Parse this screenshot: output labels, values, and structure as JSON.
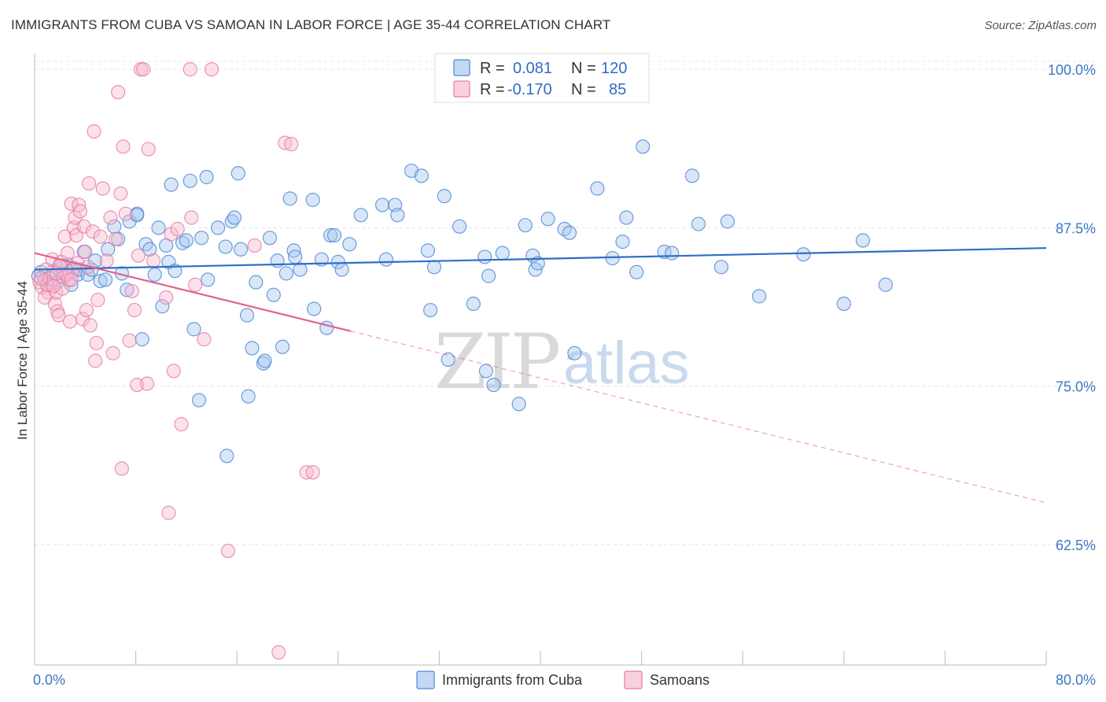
{
  "title": "IMMIGRANTS FROM CUBA VS SAMOAN IN LABOR FORCE | AGE 35-44 CORRELATION CHART",
  "source": "Source: ZipAtlas.com",
  "watermark": {
    "zip": "ZIP",
    "atlas": "atlas"
  },
  "colors": {
    "blue": "#4a86d4",
    "blue_fill": "#a9c8ef",
    "blue_line": "#2f6dc8",
    "pink": "#e87aa0",
    "pink_fill": "#f7bcd0",
    "pink_line": "#e0638d",
    "grid": "#e3e3e3",
    "axis_label": "#3b78c3"
  },
  "legend": {
    "rows": [
      {
        "r_label": "R =",
        "r_value": "0.081",
        "n_label": "N =",
        "n_value": "120"
      },
      {
        "r_label": "R =",
        "r_value": "-0.170",
        "n_label": "N =",
        "n_value": "85"
      }
    ]
  },
  "bottom_legend": [
    "Immigrants from Cuba",
    "Samoans"
  ],
  "chart_data": {
    "type": "scatter",
    "title": "IMMIGRANTS FROM CUBA VS SAMOAN IN LABOR FORCE | AGE 35-44 CORRELATION CHART",
    "xlabel": "",
    "ylabel": "In Labor Force | Age 35-44",
    "xlim": [
      0,
      80
    ],
    "ylim": [
      53,
      101
    ],
    "x_tick_labels": [
      "0.0%",
      "80.0%"
    ],
    "y_ticks": [
      62.5,
      75.0,
      87.5,
      100.0
    ],
    "y_tick_labels": [
      "62.5%",
      "75.0%",
      "87.5%",
      "100.0%"
    ],
    "grid": true,
    "legend_position": "top-center",
    "series": [
      {
        "name": "Immigrants from Cuba",
        "color": "#4a86d4",
        "trend": {
          "x": [
            0,
            80
          ],
          "y": [
            84.2,
            85.9
          ],
          "solid_until": 80
        },
        "points": [
          [
            0.3,
            83.7
          ],
          [
            0.5,
            84.0
          ],
          [
            0.8,
            83.4
          ],
          [
            1.0,
            83.0
          ],
          [
            1.2,
            83.6
          ],
          [
            1.5,
            84.1
          ],
          [
            1.8,
            83.2
          ],
          [
            2.0,
            84.5
          ],
          [
            2.3,
            83.9
          ],
          [
            2.6,
            84.6
          ],
          [
            2.9,
            83.0
          ],
          [
            3.1,
            84.3
          ],
          [
            3.4,
            83.8
          ],
          [
            3.6,
            84.2
          ],
          [
            3.9,
            85.6
          ],
          [
            4.2,
            83.8
          ],
          [
            4.5,
            84.2
          ],
          [
            4.8,
            84.9
          ],
          [
            5.2,
            83.3
          ],
          [
            5.6,
            83.4
          ],
          [
            5.8,
            85.8
          ],
          [
            6.3,
            87.6
          ],
          [
            6.6,
            86.6
          ],
          [
            6.9,
            83.9
          ],
          [
            7.3,
            82.6
          ],
          [
            7.5,
            88.0
          ],
          [
            8.1,
            88.6
          ],
          [
            8.1,
            88.5
          ],
          [
            8.5,
            78.7
          ],
          [
            8.8,
            86.2
          ],
          [
            9.1,
            85.8
          ],
          [
            9.5,
            83.8
          ],
          [
            9.8,
            87.5
          ],
          [
            10.1,
            81.3
          ],
          [
            10.4,
            86.1
          ],
          [
            10.6,
            84.8
          ],
          [
            10.8,
            90.9
          ],
          [
            11.1,
            84.1
          ],
          [
            11.7,
            86.3
          ],
          [
            12.0,
            86.5
          ],
          [
            12.3,
            91.2
          ],
          [
            12.6,
            79.5
          ],
          [
            13.0,
            73.9
          ],
          [
            13.2,
            86.7
          ],
          [
            13.6,
            91.5
          ],
          [
            13.7,
            83.4
          ],
          [
            14.5,
            87.5
          ],
          [
            15.1,
            86.0
          ],
          [
            15.2,
            69.5
          ],
          [
            15.6,
            88.0
          ],
          [
            15.8,
            88.3
          ],
          [
            16.1,
            91.8
          ],
          [
            16.3,
            85.8
          ],
          [
            16.8,
            80.6
          ],
          [
            16.9,
            74.2
          ],
          [
            17.2,
            78.0
          ],
          [
            17.5,
            83.2
          ],
          [
            18.1,
            76.8
          ],
          [
            18.2,
            77.0
          ],
          [
            18.6,
            86.7
          ],
          [
            18.9,
            82.2
          ],
          [
            19.2,
            84.9
          ],
          [
            19.6,
            78.1
          ],
          [
            19.9,
            83.9
          ],
          [
            20.2,
            89.8
          ],
          [
            20.5,
            85.7
          ],
          [
            20.6,
            85.2
          ],
          [
            21.0,
            84.2
          ],
          [
            22.0,
            89.7
          ],
          [
            22.1,
            81.1
          ],
          [
            22.7,
            85.0
          ],
          [
            23.1,
            79.6
          ],
          [
            23.4,
            86.9
          ],
          [
            23.7,
            86.9
          ],
          [
            24.0,
            84.8
          ],
          [
            24.3,
            84.2
          ],
          [
            24.9,
            86.2
          ],
          [
            25.8,
            88.5
          ],
          [
            27.5,
            89.3
          ],
          [
            27.8,
            85.0
          ],
          [
            28.5,
            89.3
          ],
          [
            28.7,
            88.5
          ],
          [
            29.8,
            92.0
          ],
          [
            30.6,
            91.6
          ],
          [
            31.1,
            85.7
          ],
          [
            31.3,
            81.0
          ],
          [
            31.6,
            84.4
          ],
          [
            32.4,
            90.0
          ],
          [
            32.7,
            77.1
          ],
          [
            33.6,
            87.6
          ],
          [
            34.7,
            81.5
          ],
          [
            35.6,
            85.2
          ],
          [
            35.7,
            76.2
          ],
          [
            35.9,
            83.7
          ],
          [
            36.3,
            75.1
          ],
          [
            37.0,
            85.5
          ],
          [
            38.3,
            73.6
          ],
          [
            38.8,
            87.7
          ],
          [
            39.4,
            85.3
          ],
          [
            39.6,
            84.2
          ],
          [
            39.8,
            84.7
          ],
          [
            40.6,
            88.2
          ],
          [
            41.9,
            87.4
          ],
          [
            42.3,
            87.1
          ],
          [
            42.7,
            77.6
          ],
          [
            44.5,
            90.6
          ],
          [
            45.7,
            85.1
          ],
          [
            46.5,
            86.4
          ],
          [
            46.8,
            88.3
          ],
          [
            47.6,
            84.0
          ],
          [
            48.1,
            93.9
          ],
          [
            49.8,
            85.6
          ],
          [
            50.4,
            85.5
          ],
          [
            52.0,
            91.6
          ],
          [
            52.5,
            87.8
          ],
          [
            54.3,
            84.4
          ],
          [
            54.8,
            88.0
          ],
          [
            57.3,
            82.1
          ],
          [
            60.8,
            85.4
          ],
          [
            64.0,
            81.5
          ],
          [
            65.5,
            86.5
          ],
          [
            67.3,
            83.0
          ]
        ]
      },
      {
        "name": "Samoans",
        "color": "#e87aa0",
        "trend": {
          "x": [
            0,
            80
          ],
          "y": [
            85.5,
            65.8
          ],
          "solid_until": 25
        },
        "points": [
          [
            0.4,
            83.2
          ],
          [
            0.6,
            82.8
          ],
          [
            0.9,
            84.2
          ],
          [
            1.1,
            82.4
          ],
          [
            1.3,
            83.0
          ],
          [
            1.4,
            85.0
          ],
          [
            1.6,
            81.5
          ],
          [
            1.7,
            82.4
          ],
          [
            1.8,
            80.9
          ],
          [
            1.9,
            80.6
          ],
          [
            2.1,
            84.8
          ],
          [
            2.2,
            82.7
          ],
          [
            2.3,
            83.6
          ],
          [
            2.4,
            86.8
          ],
          [
            2.6,
            85.5
          ],
          [
            2.7,
            83.4
          ],
          [
            2.8,
            80.1
          ],
          [
            2.9,
            89.4
          ],
          [
            3.0,
            84.1
          ],
          [
            3.1,
            87.5
          ],
          [
            3.2,
            88.3
          ],
          [
            3.3,
            86.9
          ],
          [
            3.5,
            89.3
          ],
          [
            3.6,
            88.8
          ],
          [
            3.8,
            80.3
          ],
          [
            3.9,
            87.6
          ],
          [
            4.0,
            85.6
          ],
          [
            4.1,
            81.0
          ],
          [
            4.3,
            91.0
          ],
          [
            4.4,
            79.8
          ],
          [
            4.6,
            87.2
          ],
          [
            4.7,
            95.1
          ],
          [
            4.8,
            77.0
          ],
          [
            4.9,
            78.4
          ],
          [
            5.0,
            81.8
          ],
          [
            5.2,
            86.8
          ],
          [
            5.4,
            90.6
          ],
          [
            5.7,
            84.9
          ],
          [
            6.0,
            88.3
          ],
          [
            6.2,
            77.6
          ],
          [
            6.4,
            86.6
          ],
          [
            6.6,
            98.2
          ],
          [
            6.8,
            90.2
          ],
          [
            6.9,
            68.5
          ],
          [
            7.0,
            93.9
          ],
          [
            7.2,
            88.6
          ],
          [
            7.5,
            78.6
          ],
          [
            7.7,
            82.5
          ],
          [
            7.9,
            81.0
          ],
          [
            8.1,
            75.1
          ],
          [
            8.2,
            85.3
          ],
          [
            8.4,
            100.0
          ],
          [
            8.6,
            100.0
          ],
          [
            8.9,
            75.2
          ],
          [
            9.0,
            93.7
          ],
          [
            9.4,
            84.9
          ],
          [
            10.4,
            82.0
          ],
          [
            10.6,
            65.0
          ],
          [
            10.8,
            87.0
          ],
          [
            11.0,
            76.2
          ],
          [
            11.3,
            87.4
          ],
          [
            11.6,
            72.0
          ],
          [
            12.3,
            100.0
          ],
          [
            12.4,
            88.3
          ],
          [
            12.7,
            83.0
          ],
          [
            13.4,
            78.7
          ],
          [
            14.0,
            100.0
          ],
          [
            15.3,
            62.0
          ],
          [
            17.4,
            86.1
          ],
          [
            19.3,
            54.0
          ],
          [
            19.8,
            94.2
          ],
          [
            20.3,
            94.1
          ],
          [
            21.5,
            68.2
          ],
          [
            22.0,
            68.2
          ],
          [
            1.0,
            83.0
          ],
          [
            1.2,
            83.5
          ],
          [
            1.5,
            82.9
          ],
          [
            2.0,
            84.5
          ],
          [
            2.5,
            83.8
          ],
          [
            3.4,
            84.7
          ],
          [
            0.8,
            82.0
          ],
          [
            1.7,
            83.9
          ],
          [
            2.9,
            83.4
          ],
          [
            4.2,
            84.4
          ],
          [
            0.5,
            83.5
          ]
        ]
      }
    ]
  }
}
